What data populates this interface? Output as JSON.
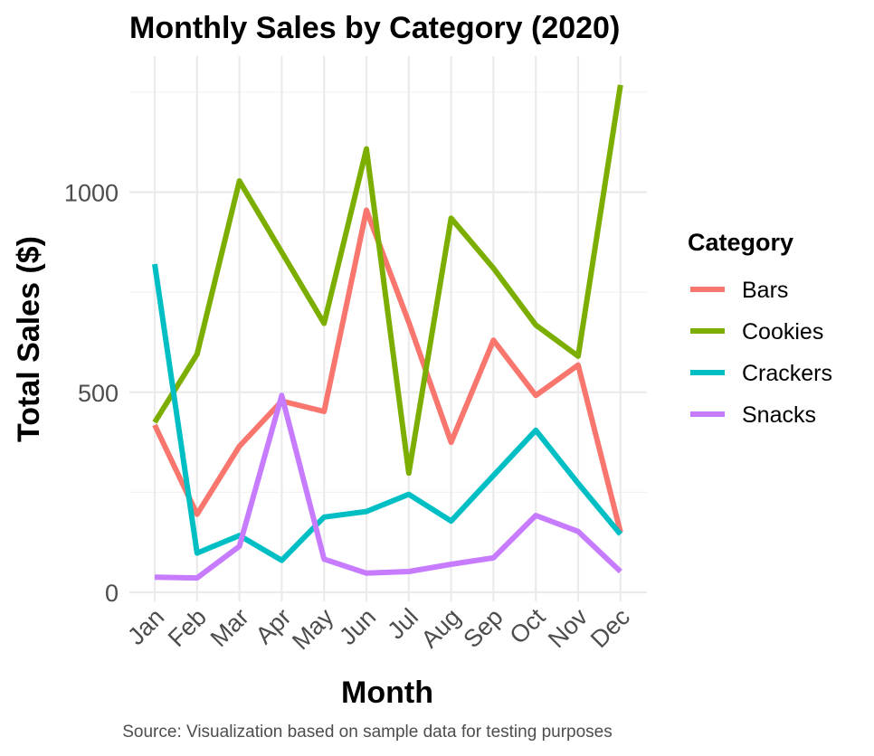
{
  "chart_data": {
    "type": "line",
    "title": "Monthly Sales by Category (2020)",
    "xlabel": "Month",
    "ylabel": "Total Sales ($)",
    "caption": "Source: Visualization based on sample data for testing purposes",
    "categories": [
      "Jan",
      "Feb",
      "Mar",
      "Apr",
      "May",
      "Jun",
      "Jul",
      "Aug",
      "Sep",
      "Oct",
      "Nov",
      "Dec"
    ],
    "yticks": [
      0,
      500,
      1000
    ],
    "ylim": [
      0,
      1270
    ],
    "grid": true,
    "legend_title": "Category",
    "legend_position": "right",
    "series": [
      {
        "name": "Bars",
        "color": "#F8766D",
        "values": [
          418,
          195,
          365,
          478,
          452,
          955,
          675,
          375,
          630,
          492,
          568,
          150
        ]
      },
      {
        "name": "Cookies",
        "color": "#7CAE00",
        "values": [
          425,
          595,
          1028,
          850,
          672,
          1108,
          298,
          935,
          810,
          668,
          590,
          1268
        ]
      },
      {
        "name": "Crackers",
        "color": "#00BFC4",
        "values": [
          820,
          98,
          142,
          80,
          188,
          202,
          245,
          178,
          292,
          405,
          272,
          145
        ]
      },
      {
        "name": "Snacks",
        "color": "#C77CFF",
        "values": [
          38,
          36,
          115,
          492,
          83,
          48,
          52,
          70,
          86,
          192,
          152,
          52
        ]
      }
    ]
  }
}
